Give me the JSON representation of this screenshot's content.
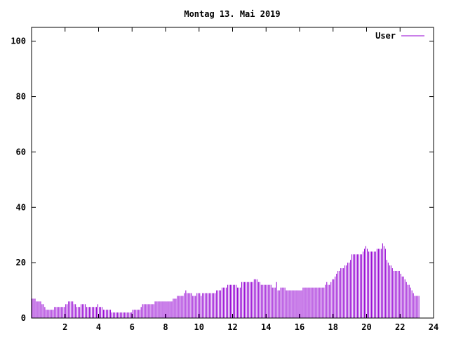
{
  "chart_data": {
    "type": "bar",
    "title": "Montag 13. Mai 2019",
    "xlabel": "",
    "ylabel": "",
    "xlim": [
      0,
      24
    ],
    "ylim": [
      0,
      105
    ],
    "x_ticks": [
      2,
      4,
      6,
      8,
      10,
      12,
      14,
      16,
      18,
      20,
      22,
      24
    ],
    "y_ticks": [
      0,
      20,
      40,
      60,
      80,
      100
    ],
    "legend": {
      "position": "top-right"
    },
    "grid": false,
    "color": "#9400d3",
    "interval_minutes": 5,
    "series": [
      {
        "name": "User",
        "values": [
          7,
          7,
          7,
          6,
          6,
          6,
          6,
          5,
          5,
          4,
          3,
          3,
          3,
          3,
          3,
          3,
          4,
          4,
          4,
          4,
          4,
          4,
          4,
          4,
          5,
          5,
          6,
          6,
          6,
          6,
          5,
          5,
          4,
          4,
          4,
          5,
          5,
          5,
          5,
          4,
          4,
          4,
          4,
          4,
          4,
          4,
          4,
          5,
          4,
          4,
          4,
          3,
          3,
          3,
          3,
          3,
          3,
          2,
          2,
          2,
          2,
          2,
          2,
          2,
          2,
          2,
          2,
          2,
          2,
          2,
          2,
          2,
          3,
          3,
          3,
          3,
          3,
          3,
          4,
          5,
          5,
          5,
          5,
          5,
          5,
          5,
          5,
          5,
          6,
          6,
          6,
          6,
          6,
          6,
          6,
          6,
          6,
          6,
          6,
          6,
          6,
          7,
          7,
          7,
          8,
          8,
          8,
          8,
          8,
          9,
          10,
          9,
          9,
          9,
          9,
          8,
          8,
          8,
          9,
          9,
          9,
          8,
          9,
          9,
          9,
          9,
          9,
          9,
          9,
          9,
          9,
          9,
          10,
          10,
          10,
          10,
          11,
          11,
          11,
          11,
          12,
          12,
          12,
          12,
          12,
          12,
          12,
          11,
          11,
          11,
          13,
          13,
          13,
          13,
          13,
          13,
          13,
          13,
          13,
          14,
          14,
          14,
          13,
          13,
          12,
          12,
          12,
          12,
          12,
          12,
          12,
          12,
          11,
          11,
          11,
          13,
          10,
          10,
          11,
          11,
          11,
          11,
          10,
          10,
          10,
          10,
          10,
          10,
          10,
          10,
          10,
          10,
          10,
          10,
          11,
          11,
          11,
          11,
          11,
          11,
          11,
          11,
          11,
          11,
          11,
          11,
          11,
          11,
          11,
          11,
          12,
          13,
          12,
          12,
          13,
          14,
          14,
          15,
          16,
          17,
          17,
          18,
          18,
          18,
          19,
          19,
          20,
          20,
          21,
          23,
          23,
          23,
          23,
          23,
          23,
          23,
          23,
          24,
          25,
          26,
          25,
          24,
          24,
          24,
          24,
          24,
          24,
          25,
          25,
          25,
          25,
          27,
          26,
          25,
          21,
          20,
          19,
          19,
          18,
          17,
          17,
          17,
          17,
          17,
          16,
          15,
          15,
          14,
          13,
          12,
          12,
          11,
          10,
          9,
          8,
          8,
          8,
          8
        ]
      }
    ]
  }
}
